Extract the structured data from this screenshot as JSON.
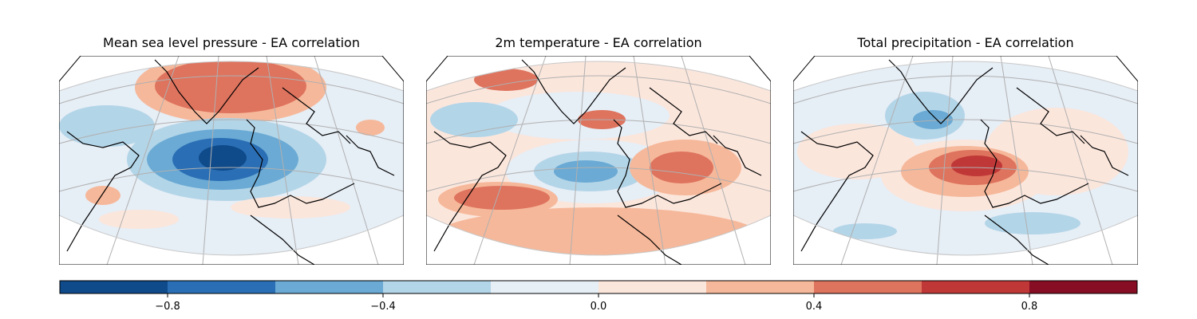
{
  "panels": [
    {
      "title": "Mean sea level pressure - EA correlation"
    },
    {
      "title": "2m temperature - EA correlation"
    },
    {
      "title": "Total precipitation - EA correlation"
    }
  ],
  "colorbar": {
    "ticks": [
      "−0.8",
      "−0.4",
      "0.0",
      "0.4",
      "0.8"
    ],
    "colors": [
      "#0f4a8a",
      "#2a6fb5",
      "#6aaad4",
      "#b3d5e8",
      "#e6eef6",
      "#fbe6dc",
      "#f6b89a",
      "#de735e",
      "#c03737",
      "#870d25"
    ],
    "range": [
      -1.0,
      1.0
    ]
  },
  "chart_data": {
    "type": "heatmap",
    "series": [
      {
        "name": "Mean sea level pressure - EA correlation"
      },
      {
        "name": "2m temperature - EA correlation"
      },
      {
        "name": "Total precipitation - EA correlation"
      }
    ],
    "value_range": [
      -1.0,
      1.0
    ]
  }
}
